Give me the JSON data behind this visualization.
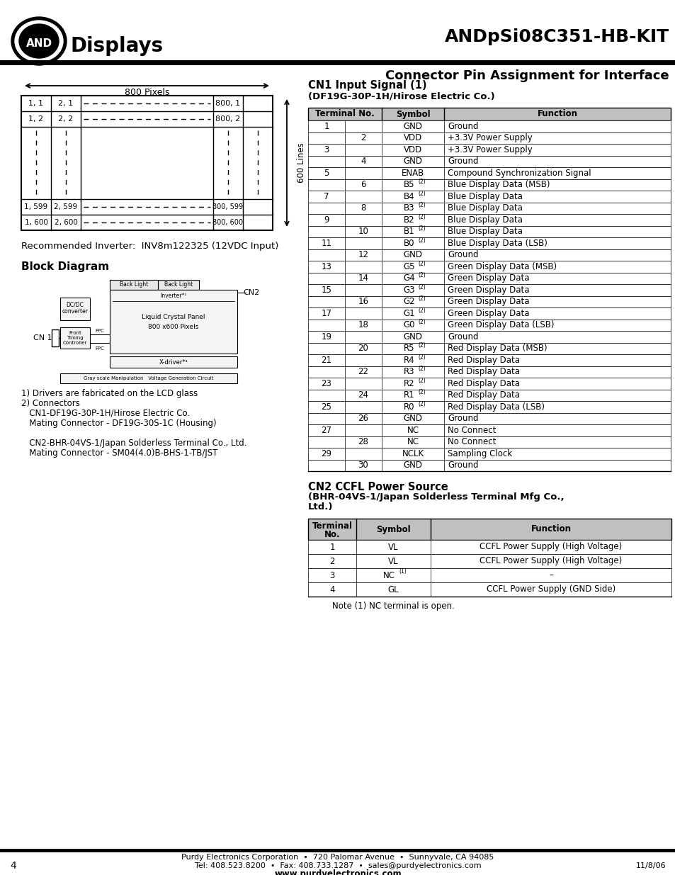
{
  "title": "ANDpSi08C351-HB-KIT",
  "subtitle": "Connector Pin Assignment for Interface",
  "bg_color": "#ffffff",
  "logo_text": "AND",
  "logo_sub": "Displays",
  "pixels_label": "800 Pixels",
  "lines_label": "600 Lines",
  "recommended_inverter": "Recommended Inverter:  INV8m122325 (12VDC Input)",
  "block_diagram_label": "Block Diagram",
  "notes_line1": "1) Drivers are fabricated on the LCD glass",
  "notes_line2": "2) Connectors",
  "notes_line3": "   CN1-DF19G-30P-1H/Hirose Electric Co.",
  "notes_line4": "   Mating Connector - DF19G-30S-1C (Housing)",
  "notes_line5": "   CN2-BHR-04VS-1/Japan Solderless Terminal Co., Ltd.",
  "notes_line6": "   Mating Connector - SM04(4.0)B-BHS-1-TB/JST",
  "cn1_title": "CN1 Input Signal (1)",
  "cn1_subtitle": "(DF19G-30P-1H/Hirose Electric Co.)",
  "cn1_rows": [
    [
      "1",
      "",
      "GND",
      "Ground"
    ],
    [
      "",
      "2",
      "VDD",
      "+3.3V Power Supply"
    ],
    [
      "3",
      "",
      "VDD",
      "+3.3V Power Supply"
    ],
    [
      "",
      "4",
      "GND",
      "Ground"
    ],
    [
      "5",
      "",
      "ENAB",
      "Compound Synchronization Signal"
    ],
    [
      "",
      "6",
      "B5(2)",
      "Blue Display Data (MSB)"
    ],
    [
      "7",
      "",
      "B4(2)",
      "Blue Display Data"
    ],
    [
      "",
      "8",
      "B3(2)",
      "Blue Display Data"
    ],
    [
      "9",
      "",
      "B2(2)",
      "Blue Display Data"
    ],
    [
      "",
      "10",
      "B1(2)",
      "Blue Display Data"
    ],
    [
      "11",
      "",
      "B0(2)",
      "Blue Display Data (LSB)"
    ],
    [
      "",
      "12",
      "GND",
      "Ground"
    ],
    [
      "13",
      "",
      "G5(2)",
      "Green Display Data (MSB)"
    ],
    [
      "",
      "14",
      "G4(2)",
      "Green Display Data"
    ],
    [
      "15",
      "",
      "G3(2)",
      "Green Display Data"
    ],
    [
      "",
      "16",
      "G2(2)",
      "Green Display Data"
    ],
    [
      "17",
      "",
      "G1(2)",
      "Green Display Data"
    ],
    [
      "",
      "18",
      "G0(2)",
      "Green Display Data (LSB)"
    ],
    [
      "19",
      "",
      "GND",
      "Ground"
    ],
    [
      "",
      "20",
      "R5(2)",
      "Red Display Data (MSB)"
    ],
    [
      "21",
      "",
      "R4(2)",
      "Red Display Data"
    ],
    [
      "",
      "22",
      "R3(2)",
      "Red Display Data"
    ],
    [
      "23",
      "",
      "R2(2)",
      "Red Display Data"
    ],
    [
      "",
      "24",
      "R1(2)",
      "Red Display Data"
    ],
    [
      "25",
      "",
      "R0(2)",
      "Red Display Data (LSB)"
    ],
    [
      "",
      "26",
      "GND",
      "Ground"
    ],
    [
      "27",
      "",
      "NC",
      "No Connect"
    ],
    [
      "",
      "28",
      "NC",
      "No Connect"
    ],
    [
      "29",
      "",
      "NCLK",
      "Sampling Clock"
    ],
    [
      "",
      "30",
      "GND",
      "Ground"
    ]
  ],
  "cn2_title": "CN2 CCFL Power Source",
  "cn2_subtitle1": "(BHR-04VS-1/Japan Solderless Terminal Mfg Co.,",
  "cn2_subtitle2": "Ltd.)",
  "cn2_rows": [
    [
      "1",
      "VL",
      "CCFL Power Supply (High Voltage)"
    ],
    [
      "2",
      "VL",
      "CCFL Power Supply (High Voltage)"
    ],
    [
      "3",
      "NC(1)",
      "–"
    ],
    [
      "4",
      "GL",
      "CCFL Power Supply (GND Side)"
    ]
  ],
  "cn2_note": "Note (1) NC terminal is open.",
  "footer_line1": "Purdy Electronics Corporation  •  720 Palomar Avenue  •  Sunnyvale, CA 94085",
  "footer_line2": "Tel: 408.523.8200  •  Fax: 408.733.1287  •  sales@purdyelectronics.com",
  "footer_line3": "www.purdyelectronics.com",
  "footer_date": "11/8/06",
  "page_number": "4",
  "table_header_bg": "#c0c0c0",
  "table_border": "#000000"
}
